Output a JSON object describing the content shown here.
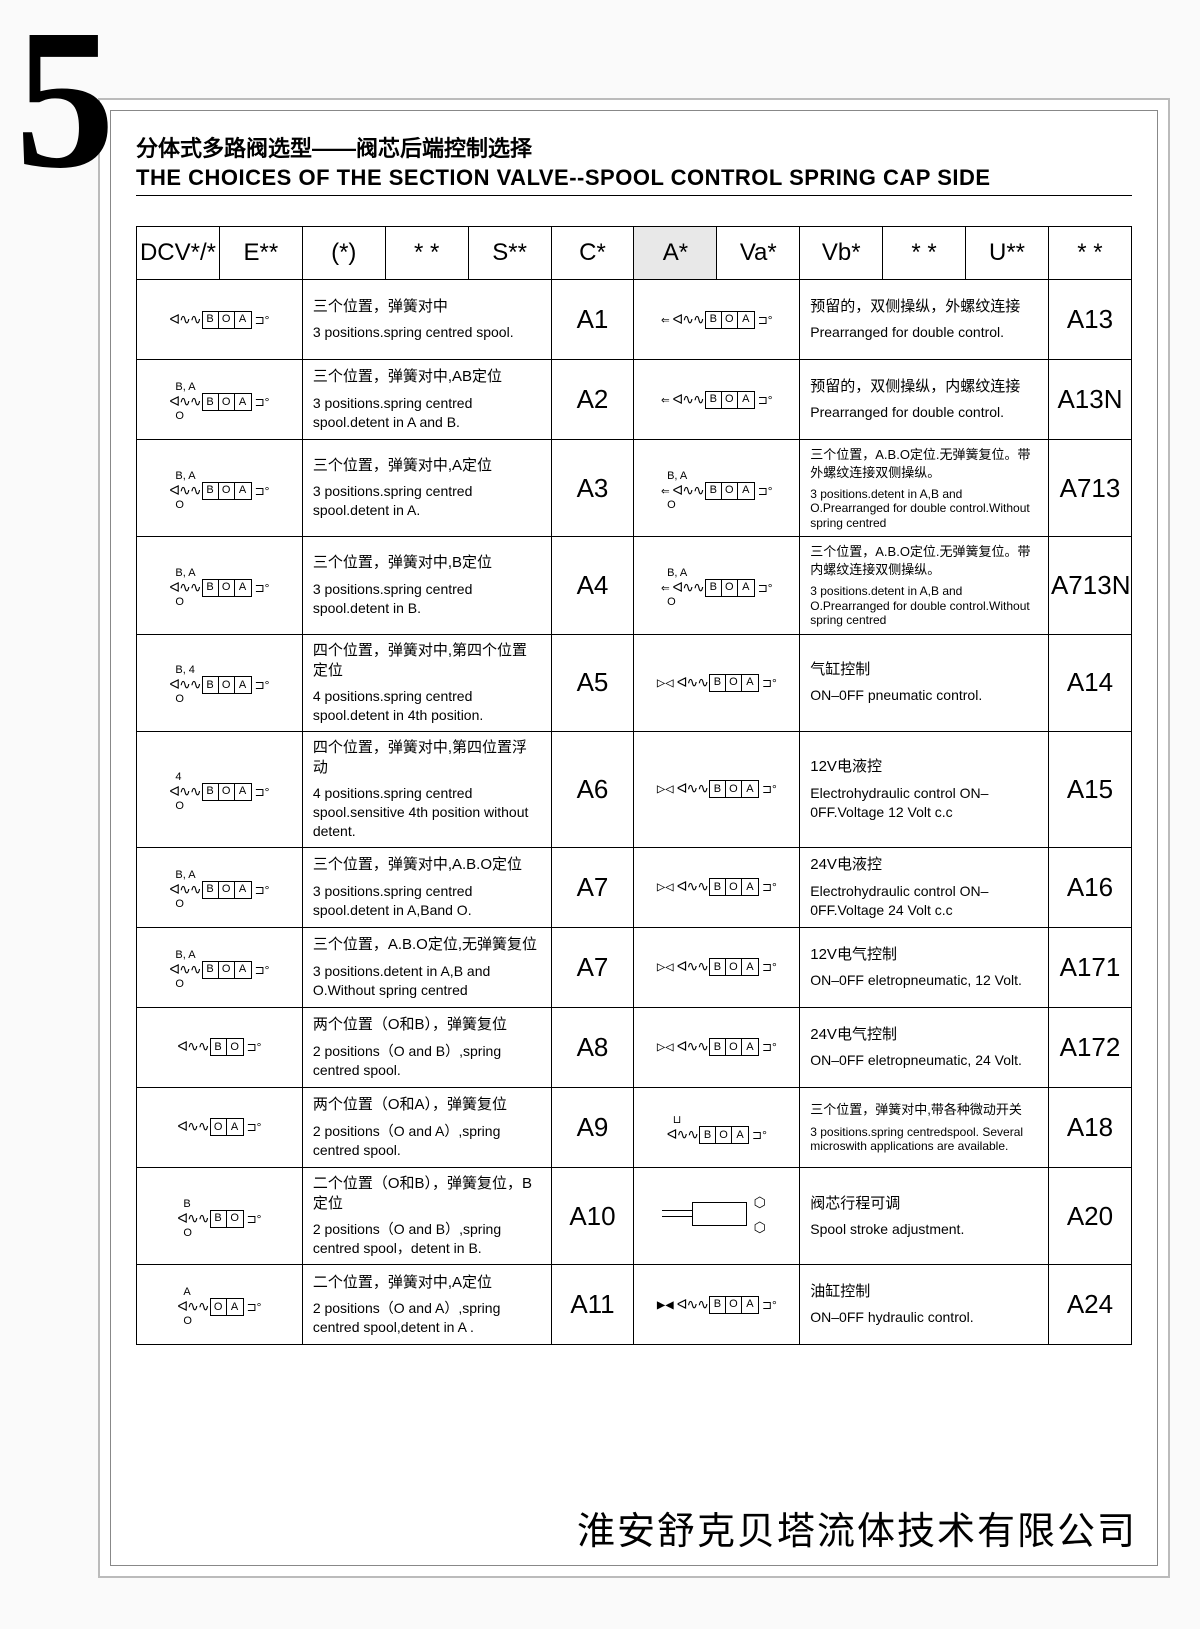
{
  "page_number": "5",
  "title_cn": "分体式多路阀选型——阀芯后端控制选择",
  "title_en": "THE CHOICES OF THE SECTION VALVE--SPOOL CONTROL SPRING CAP SIDE",
  "header": [
    "DCV*/*",
    "E**",
    "(*)",
    "* *",
    "S**",
    "C*",
    "A*",
    "Va*",
    "Vb*",
    "* *",
    "U**",
    "* *"
  ],
  "header_highlight_index": 6,
  "rows_left": [
    {
      "top": "",
      "bot": "",
      "extra": "",
      "boxes": [
        "B",
        "O",
        "A"
      ],
      "cn": "三个位置，弹簧对中",
      "en": "3 positions.spring centred spool.",
      "code": "A1"
    },
    {
      "top": "B, A",
      "bot": "O",
      "extra": "",
      "boxes": [
        "B",
        "O",
        "A"
      ],
      "cn": "三个位置，弹簧对中,AB定位",
      "en": "3 positions.spring centred spool.detent in A and B.",
      "code": "A2"
    },
    {
      "top": "B, A",
      "bot": "O",
      "extra": "",
      "boxes": [
        "B",
        "O",
        "A"
      ],
      "cn": "三个位置，弹簧对中,A定位",
      "en": "3 positions.spring centred spool.detent in A.",
      "code": "A3"
    },
    {
      "top": "B, A",
      "bot": "O",
      "extra": "",
      "boxes": [
        "B",
        "O",
        "A"
      ],
      "cn": "三个位置，弹簧对中,B定位",
      "en": "3 positions.spring centred spool.detent in B.",
      "code": "A4"
    },
    {
      "top": "B, 4",
      "bot": "O",
      "extra": "",
      "boxes": [
        "B",
        "O",
        "A"
      ],
      "cn": "四个位置，弹簧对中,第四个位置定位",
      "en": "4 positions.spring centred spool.detent in 4th position.",
      "code": "A5"
    },
    {
      "top": "4",
      "bot": "O",
      "extra": "",
      "boxes": [
        "B",
        "O",
        "A"
      ],
      "cn": "四个位置，弹簧对中,第四位置浮动",
      "en": "4 positions.spring centred spool.sensitive 4th position without detent.",
      "code": "A6"
    },
    {
      "top": "B, A",
      "bot": "O",
      "extra": "",
      "boxes": [
        "B",
        "O",
        "A"
      ],
      "cn": "三个位置，弹簧对中,A.B.O定位",
      "en": "3 positions.spring centred spool.detent in A,Band O.",
      "code": "A7"
    },
    {
      "top": "B, A",
      "bot": "O",
      "extra": "",
      "boxes": [
        "B",
        "O",
        "A"
      ],
      "cn": "三个位置，A.B.O定位,无弹簧复位",
      "en": "3 positions.detent in A,B and O.Without spring centred",
      "code": "A7"
    },
    {
      "top": "",
      "bot": "",
      "extra": "",
      "boxes": [
        "B",
        "O"
      ],
      "cn": "两个位置（O和B），弹簧复位",
      "en": "2 positions（O and B）,spring centred spool.",
      "code": "A8"
    },
    {
      "top": "",
      "bot": "",
      "extra": "",
      "boxes": [
        "O",
        "A"
      ],
      "cn": "两个位置（O和A），弹簧复位",
      "en": "2 positions（O and A）,spring centred spool.",
      "code": "A9"
    },
    {
      "top": "B",
      "bot": "O",
      "extra": "",
      "boxes": [
        "B",
        "O"
      ],
      "cn": "二个位置（O和B），弹簧复位，B定位",
      "en": "2 positions（O and B）,spring centred spool，detent in B.",
      "code": "A10"
    },
    {
      "top": "A",
      "bot": "O",
      "extra": "",
      "boxes": [
        "O",
        "A"
      ],
      "cn": "二个位置，弹簧对中,A定位",
      "en": "2 positions（O and A）,spring centred spool,detent in A .",
      "code": "A11"
    }
  ],
  "rows_right": [
    {
      "top": "",
      "bot": "",
      "extra": "⇐",
      "boxes": [
        "B",
        "O",
        "A"
      ],
      "cn": "预留的，双侧操纵，外螺纹连接",
      "en": "Prearranged for double control.",
      "code": "A13",
      "small": false
    },
    {
      "top": "",
      "bot": "",
      "extra": "⇐",
      "boxes": [
        "B",
        "O",
        "A"
      ],
      "cn": "预留的，双侧操纵，内螺纹连接",
      "en": "Prearranged for double control.",
      "code": "A13N",
      "small": false
    },
    {
      "top": "B, A",
      "bot": "O",
      "extra": "⇐",
      "boxes": [
        "B",
        "O",
        "A"
      ],
      "cn": "三个位置，A.B.O定位.无弹簧复位。带外螺纹连接双侧操纵。",
      "en": "3 positions.detent in A,B and O.Prearranged for double control.Without spring centred",
      "code": "A713",
      "small": true
    },
    {
      "top": "B, A",
      "bot": "O",
      "extra": "⇐",
      "boxes": [
        "B",
        "O",
        "A"
      ],
      "cn": "三个位置，A.B.O定位.无弹簧复位。带内螺纹连接双侧操纵。",
      "en": "3 positions.detent in A,B and O.Prearranged for double control.Without spring centred",
      "code": "A713N",
      "small": true
    },
    {
      "top": "",
      "bot": "",
      "extra": "▷◁",
      "boxes": [
        "B",
        "O",
        "A"
      ],
      "cn": "气缸控制",
      "en": "ON–0FF pneumatic control.",
      "code": "A14",
      "small": false
    },
    {
      "top": "",
      "bot": "",
      "extra": "▷◁",
      "boxes": [
        "B",
        "O",
        "A"
      ],
      "cn": "12V电液控",
      "en": "Electrohydraulic control ON–0FF.Voltage 12 Volt c.c",
      "code": "A15",
      "small": false
    },
    {
      "top": "",
      "bot": "",
      "extra": "▷◁",
      "boxes": [
        "B",
        "O",
        "A"
      ],
      "cn": "24V电液控",
      "en": "Electrohydraulic control ON–0FF.Voltage 24 Volt c.c",
      "code": "A16",
      "small": false
    },
    {
      "top": "",
      "bot": "",
      "extra": "▷◁",
      "boxes": [
        "B",
        "O",
        "A"
      ],
      "cn": "12V电气控制",
      "en": "ON–0FF eletropneumatic, 12 Volt.",
      "code": "A171",
      "small": false
    },
    {
      "top": "",
      "bot": "",
      "extra": "▷◁",
      "boxes": [
        "B",
        "O",
        "A"
      ],
      "cn": "24V电气控制",
      "en": "ON–0FF eletropneumatic, 24 Volt.",
      "code": "A172",
      "small": false
    },
    {
      "top": "⊔",
      "bot": "",
      "extra": "",
      "boxes": [
        "B",
        "O",
        "A"
      ],
      "cn": "三个位置，弹簧对中,带各种微动开关",
      "en": "3 positions.spring centredspool. Several microswith applications are available.",
      "code": "A18",
      "small": true
    },
    {
      "special": "stroke",
      "cn": "阀芯行程可调",
      "en": "Spool stroke adjustment.",
      "code": "A20",
      "small": false
    },
    {
      "top": "",
      "bot": "",
      "extra": "▶◀",
      "boxes": [
        "B",
        "O",
        "A"
      ],
      "cn": "油缸控制",
      "en": "ON–0FF hydraulic control.",
      "code": "A24",
      "small": false
    }
  ],
  "footer_company": "淮安舒克贝塔流体技术有限公司",
  "colors": {
    "border": "#000000",
    "frame": "#bbbbbb",
    "highlight_bg": "#e8e8e8",
    "page_bg": "#fafafa"
  }
}
